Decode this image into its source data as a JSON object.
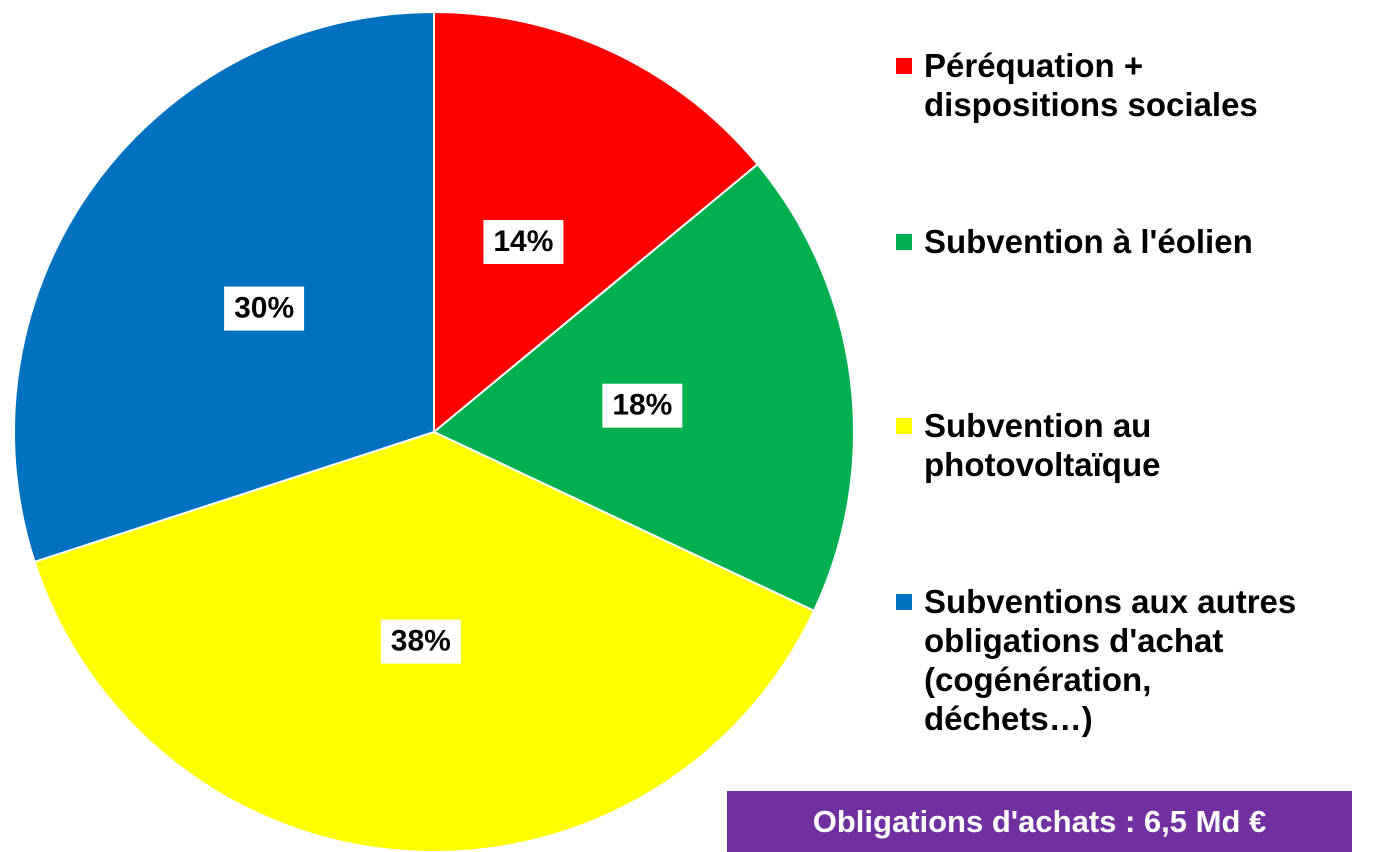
{
  "chart_data": {
    "type": "pie",
    "categories": [
      "Péréquation +\ndispositions sociales",
      "Subvention à l'éolien",
      "Subvention au\nphotovoltaïque",
      "Subventions aux autres\nobligations d'achat\n(cogénération,\ndéchets…)"
    ],
    "values": [
      14,
      18,
      38,
      30
    ],
    "value_labels": [
      "14%",
      "18%",
      "38%",
      "30%"
    ],
    "colors": [
      "#ff0000",
      "#00b050",
      "#ffff00",
      "#0070c0"
    ],
    "annotation": "Obligations d'achats : 6,5 Md €"
  }
}
